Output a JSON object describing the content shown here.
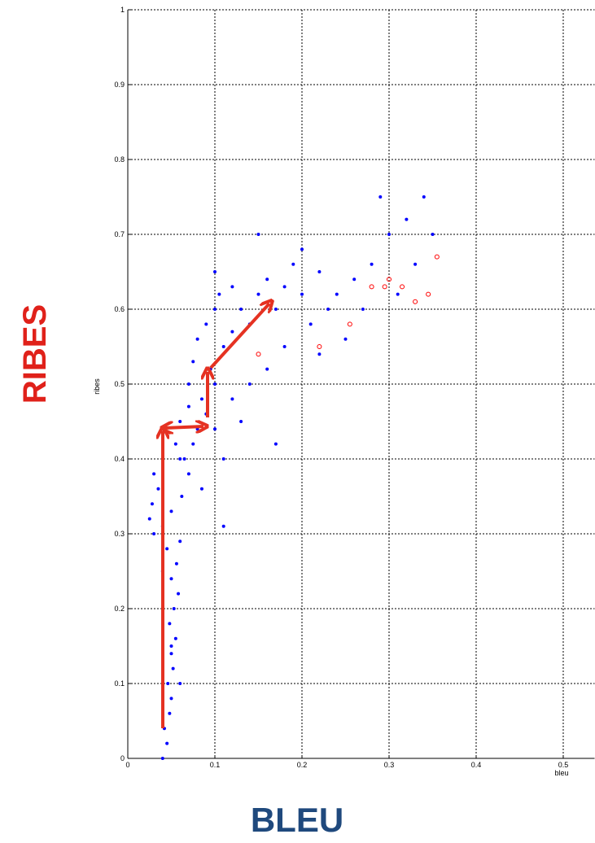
{
  "chart_data": {
    "type": "scatter",
    "x_label": "bleu",
    "y_label": "ribes",
    "big_x_label": "BLEU",
    "big_y_label": "RIBES",
    "xlim": [
      0,
      0.536
    ],
    "ylim": [
      0,
      1
    ],
    "xticks": [
      0,
      0.1,
      0.2,
      0.3,
      0.4,
      0.5
    ],
    "yticks": [
      0,
      0.1,
      0.2,
      0.3,
      0.4,
      0.5,
      0.6,
      0.7,
      0.8,
      0.9,
      1
    ],
    "grid": true,
    "series": [
      {
        "color": "#0000ff",
        "x": [
          0.04,
          0.045,
          0.042,
          0.048,
          0.05,
          0.046,
          0.052,
          0.05,
          0.055,
          0.048,
          0.053,
          0.058,
          0.05,
          0.056,
          0.045,
          0.06,
          0.03,
          0.025,
          0.028,
          0.035,
          0.03,
          0.04,
          0.05,
          0.062,
          0.07,
          0.065,
          0.055,
          0.075,
          0.08,
          0.06,
          0.07,
          0.085,
          0.09,
          0.1,
          0.095,
          0.075,
          0.08,
          0.09,
          0.1,
          0.11,
          0.12,
          0.105,
          0.12,
          0.13,
          0.14,
          0.15,
          0.16,
          0.17,
          0.18,
          0.2,
          0.19,
          0.22,
          0.24,
          0.21,
          0.23,
          0.26,
          0.28,
          0.3,
          0.29,
          0.32,
          0.34,
          0.31,
          0.33,
          0.35,
          0.27,
          0.25,
          0.22,
          0.18,
          0.16,
          0.14,
          0.12,
          0.1,
          0.11,
          0.13,
          0.085,
          0.11,
          0.17,
          0.15,
          0.2,
          0.1,
          0.07,
          0.06,
          0.04,
          0.05,
          0.06
        ],
        "y": [
          0.0,
          0.02,
          0.04,
          0.06,
          0.08,
          0.1,
          0.12,
          0.14,
          0.16,
          0.18,
          0.2,
          0.22,
          0.24,
          0.26,
          0.28,
          0.29,
          0.3,
          0.32,
          0.34,
          0.36,
          0.38,
          0.31,
          0.33,
          0.35,
          0.38,
          0.4,
          0.42,
          0.42,
          0.44,
          0.45,
          0.47,
          0.48,
          0.46,
          0.5,
          0.52,
          0.53,
          0.56,
          0.58,
          0.6,
          0.55,
          0.57,
          0.62,
          0.63,
          0.6,
          0.58,
          0.62,
          0.64,
          0.6,
          0.63,
          0.62,
          0.66,
          0.65,
          0.62,
          0.58,
          0.6,
          0.64,
          0.66,
          0.7,
          0.75,
          0.72,
          0.75,
          0.62,
          0.66,
          0.7,
          0.6,
          0.56,
          0.54,
          0.55,
          0.52,
          0.5,
          0.48,
          0.44,
          0.4,
          0.45,
          0.36,
          0.31,
          0.42,
          0.7,
          0.68,
          0.65,
          0.5,
          0.4,
          0.25,
          0.15,
          0.1
        ]
      },
      {
        "color": "#ff0000",
        "x": [
          0.15,
          0.22,
          0.255,
          0.28,
          0.295,
          0.3,
          0.315,
          0.33,
          0.345,
          0.355
        ],
        "y": [
          0.54,
          0.55,
          0.58,
          0.63,
          0.63,
          0.64,
          0.63,
          0.61,
          0.62,
          0.67
        ]
      }
    ]
  }
}
